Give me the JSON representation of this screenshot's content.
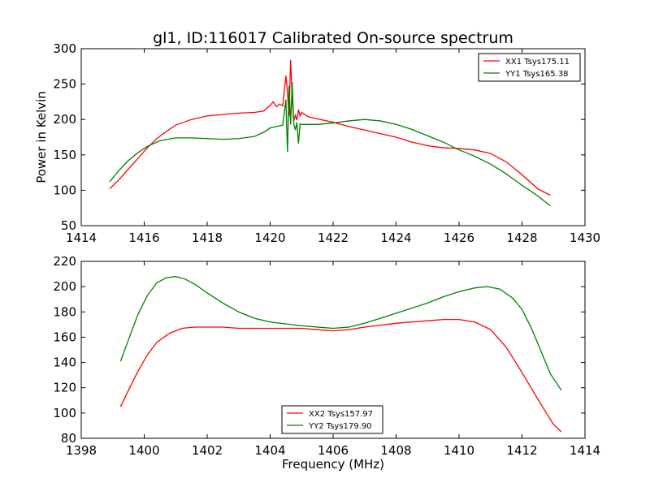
{
  "title": "gl1, ID:116017 Calibrated On-source spectrum",
  "chart_data": [
    {
      "type": "line",
      "ylabel": "Power in Kelvin",
      "xlabel": "",
      "xlim": [
        1414,
        1430
      ],
      "ylim": [
        50,
        300
      ],
      "xticks": [
        1414,
        1416,
        1418,
        1420,
        1422,
        1424,
        1426,
        1428,
        1430
      ],
      "yticks": [
        50,
        100,
        150,
        200,
        250,
        300
      ],
      "legend_position": "top-right",
      "series": [
        {
          "name": "XX1 Tsys175.11",
          "color": "#ff0000",
          "x": [
            1414.9,
            1415.2,
            1415.5,
            1415.8,
            1416.1,
            1416.4,
            1416.7,
            1417.0,
            1417.5,
            1418.0,
            1418.5,
            1419.0,
            1419.5,
            1419.8,
            1420.0,
            1420.1,
            1420.2,
            1420.3,
            1420.4,
            1420.5,
            1420.55,
            1420.6,
            1420.65,
            1420.7,
            1420.75,
            1420.8,
            1420.85,
            1420.9,
            1420.95,
            1421.0,
            1421.2,
            1421.5,
            1422.0,
            1422.5,
            1423.0,
            1423.5,
            1424.0,
            1424.5,
            1425.0,
            1425.5,
            1426.0,
            1426.5,
            1427.0,
            1427.5,
            1428.0,
            1428.5,
            1428.9
          ],
          "y": [
            102,
            115,
            130,
            145,
            160,
            173,
            183,
            192,
            200,
            205,
            207,
            209,
            210,
            212,
            220,
            225,
            218,
            222,
            219,
            262,
            238,
            205,
            284,
            230,
            198,
            206,
            199,
            214,
            205,
            210,
            204,
            201,
            196,
            190,
            185,
            180,
            175,
            168,
            163,
            160,
            159,
            157,
            152,
            140,
            122,
            102,
            93
          ]
        },
        {
          "name": "YY1 Tsys165.38",
          "color": "#008000",
          "x": [
            1414.9,
            1415.2,
            1415.5,
            1415.8,
            1416.1,
            1416.5,
            1417.0,
            1417.5,
            1418.0,
            1418.5,
            1419.0,
            1419.5,
            1419.8,
            1420.0,
            1420.2,
            1420.4,
            1420.5,
            1420.55,
            1420.6,
            1420.65,
            1420.7,
            1420.75,
            1420.8,
            1420.85,
            1420.9,
            1420.95,
            1421.0,
            1421.2,
            1421.5,
            1422.0,
            1422.5,
            1423.0,
            1423.5,
            1424.0,
            1424.5,
            1425.0,
            1425.5,
            1426.0,
            1426.5,
            1427.0,
            1427.5,
            1428.0,
            1428.5,
            1428.9
          ],
          "y": [
            112,
            128,
            142,
            153,
            162,
            170,
            174,
            174,
            173,
            172,
            173,
            176,
            182,
            188,
            190,
            192,
            228,
            154,
            248,
            193,
            253,
            194,
            185,
            196,
            166,
            194,
            193,
            193,
            193,
            195,
            198,
            200,
            198,
            193,
            186,
            177,
            168,
            157,
            148,
            137,
            123,
            107,
            92,
            78
          ]
        }
      ]
    },
    {
      "type": "line",
      "ylabel": "",
      "xlabel": "Frequency (MHz)",
      "xlim": [
        1398,
        1414
      ],
      "ylim": [
        80,
        220
      ],
      "xticks": [
        1398,
        1400,
        1402,
        1404,
        1406,
        1408,
        1410,
        1412,
        1414
      ],
      "yticks": [
        80,
        100,
        120,
        140,
        160,
        180,
        200,
        220
      ],
      "legend_position": "bottom-center",
      "series": [
        {
          "name": "XX2 Tsys157.97",
          "color": "#ff0000",
          "x": [
            1399.25,
            1399.5,
            1399.8,
            1400.1,
            1400.4,
            1400.8,
            1401.2,
            1401.6,
            1402.0,
            1402.5,
            1403.0,
            1404.0,
            1405.0,
            1406.0,
            1406.5,
            1407.0,
            1408.0,
            1409.0,
            1409.5,
            1410.0,
            1410.5,
            1411.0,
            1411.5,
            1412.0,
            1412.5,
            1412.8,
            1413.0,
            1413.25
          ],
          "y": [
            105,
            118,
            133,
            146,
            156,
            163,
            167,
            168,
            168,
            168,
            167,
            167,
            167,
            165,
            166,
            168,
            171,
            173,
            174,
            174,
            172,
            166,
            152,
            132,
            111,
            99,
            91,
            85
          ]
        },
        {
          "name": "YY2 Tsys179.90",
          "color": "#008000",
          "x": [
            1399.25,
            1399.5,
            1399.8,
            1400.1,
            1400.4,
            1400.7,
            1401.0,
            1401.3,
            1401.6,
            1402.0,
            1402.5,
            1403.0,
            1403.5,
            1404.0,
            1405.0,
            1406.0,
            1406.5,
            1407.0,
            1407.5,
            1408.0,
            1408.5,
            1409.0,
            1409.5,
            1410.0,
            1410.5,
            1410.9,
            1411.3,
            1411.7,
            1412.0,
            1412.3,
            1412.6,
            1412.9,
            1413.25
          ],
          "y": [
            141,
            158,
            178,
            193,
            203,
            207,
            208,
            206,
            202,
            195,
            187,
            180,
            175,
            172,
            169,
            167,
            168,
            171,
            175,
            179,
            183,
            187,
            192,
            196,
            199,
            200,
            198,
            191,
            182,
            167,
            149,
            131,
            118
          ]
        }
      ]
    }
  ]
}
